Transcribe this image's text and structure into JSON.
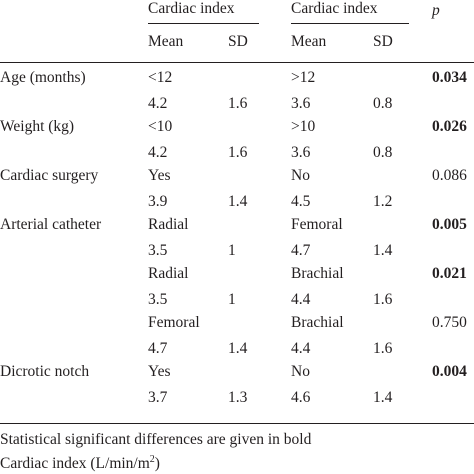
{
  "header": {
    "group_left": "Cardiac index",
    "group_right": "Cardiac index",
    "p_label": "p",
    "mean_left": "Mean",
    "sd_left": "SD",
    "mean_right": "Mean",
    "sd_right": "SD"
  },
  "rows": [
    {
      "label": "Age (months)",
      "cat_left": "<12",
      "cat_right": ">12",
      "p": "0.034",
      "mean_left": "4.2",
      "sd_left": "1.6",
      "mean_right": "3.6",
      "sd_right": "0.8"
    },
    {
      "label": "Weight (kg)",
      "cat_left": "<10",
      "cat_right": ">10",
      "p": "0.026",
      "mean_left": "4.2",
      "sd_left": "1.6",
      "mean_right": "3.6",
      "sd_right": "0.8"
    },
    {
      "label": "Cardiac surgery",
      "cat_left": "Yes",
      "cat_right": "No",
      "p": "0.086",
      "mean_left": "3.9",
      "sd_left": "1.4",
      "mean_right": "4.5",
      "sd_right": "1.2"
    },
    {
      "label": "Arterial catheter",
      "cat_left": "Radial",
      "cat_right": "Femoral",
      "p": "0.005",
      "mean_left": "3.5",
      "sd_left": "1",
      "mean_right": "4.7",
      "sd_right": "1.4"
    },
    {
      "label": "",
      "cat_left": "Radial",
      "cat_right": "Brachial",
      "p": "0.021",
      "mean_left": "3.5",
      "sd_left": "1",
      "mean_right": "4.4",
      "sd_right": "1.6"
    },
    {
      "label": "",
      "cat_left": "Femoral",
      "cat_right": "Brachial",
      "p": "0.750",
      "mean_left": "4.7",
      "sd_left": "1.4",
      "mean_right": "4.4",
      "sd_right": "1.6"
    },
    {
      "label": "Dicrotic notch",
      "cat_left": "Yes",
      "cat_right": "No",
      "p": "0.004",
      "mean_left": "3.7",
      "sd_left": "1.3",
      "mean_right": "4.6",
      "sd_right": "1.4"
    }
  ],
  "footnotes": {
    "note": "Statistical significant differences are given in bold",
    "units_prefix": "Cardiac index (L/min/m",
    "units_sup": "2",
    "units_suffix": ")"
  }
}
